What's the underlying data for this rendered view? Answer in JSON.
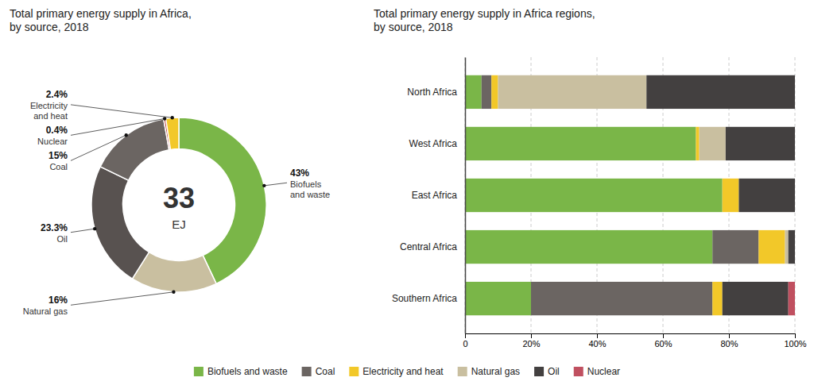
{
  "chart_data": [
    {
      "type": "pie",
      "title": "Total primary energy supply in Africa,\nby source, 2018",
      "categories": [
        "Biofuels\nand waste",
        "Natural gas",
        "Oil",
        "Coal",
        "Nuclear",
        "Electricity\nand heat"
      ],
      "values": [
        43,
        16,
        23.3,
        15,
        0.4,
        2.4
      ],
      "value_labels": [
        "43%",
        "16%",
        "23.3%",
        "15%",
        "0.4%",
        "2.4%"
      ],
      "colors": [
        "#7ab648",
        "#c9bfa0",
        "#585250",
        "#6b6562",
        "#b84444",
        "#f2c829"
      ],
      "data_labels": true,
      "annotations": [
        "33",
        "EJ"
      ]
    },
    {
      "type": "bar",
      "orientation": "horizontal",
      "stacked": true,
      "title": "Total primary energy supply in Africa regions,\nby source, 2018",
      "categories": [
        "North Africa",
        "West Africa",
        "East Africa",
        "Central Africa",
        "Southern Africa"
      ],
      "series": [
        {
          "name": "Biofuels and waste",
          "color": "#7ab648",
          "values": [
            5,
            70,
            78,
            75,
            20
          ]
        },
        {
          "name": "Coal",
          "color": "#6b6562",
          "values": [
            3,
            0,
            0,
            14,
            55
          ]
        },
        {
          "name": "Electricity and heat",
          "color": "#f2c829",
          "values": [
            2,
            1,
            5,
            8,
            3
          ]
        },
        {
          "name": "Natural gas",
          "color": "#c9bfa0",
          "values": [
            45,
            8,
            0,
            1,
            0
          ]
        },
        {
          "name": "Oil",
          "color": "#434040",
          "values": [
            45,
            21,
            17,
            2,
            20
          ]
        },
        {
          "name": "Nuclear",
          "color": "#c05060",
          "values": [
            0,
            0,
            0,
            0,
            2
          ]
        }
      ],
      "xlim": [
        0,
        100
      ],
      "xticks": [
        0,
        {
          "value": 20,
          "label": "20%"
        },
        {
          "value": 40,
          "label": "40%"
        },
        {
          "value": 60,
          "label": "60%"
        },
        {
          "value": 80,
          "label": "80%"
        },
        {
          "value": 100,
          "label": "100%"
        }
      ],
      "grid": true,
      "legend": "bottom"
    }
  ]
}
